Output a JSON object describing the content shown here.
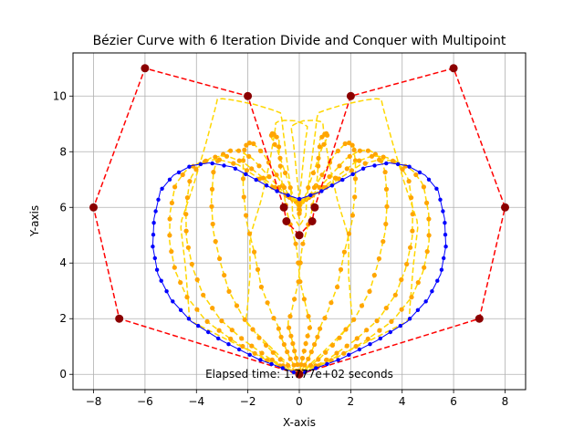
{
  "chart_data": {
    "type": "line",
    "title": "Bézier Curve with 6 Iteration Divide and Conquer with Multipoint",
    "xlabel": "X-axis",
    "ylabel": "Y-axis",
    "xlim": [
      -8.8,
      8.8
    ],
    "ylim": [
      -0.55,
      11.55
    ],
    "xticks": [
      -8,
      -6,
      -4,
      -2,
      0,
      2,
      4,
      6,
      8
    ],
    "yticks": [
      0,
      2,
      4,
      6,
      8,
      10
    ],
    "grid": true,
    "annotation": {
      "text": "Elapsed time: 1.777e+02 seconds",
      "x": 0,
      "y": 0
    },
    "control_polygon": {
      "color": "#ff0000",
      "style": "dashed",
      "marker_color": "#8b0000",
      "points": [
        [
          0,
          5
        ],
        [
          -0.5,
          5.5
        ],
        [
          -0.6,
          6
        ],
        [
          -2,
          10
        ],
        [
          -6,
          11
        ],
        [
          -8,
          6
        ],
        [
          -7,
          2
        ],
        [
          0,
          0
        ],
        [
          7,
          2
        ],
        [
          8,
          6
        ],
        [
          6,
          11
        ],
        [
          2,
          10
        ],
        [
          0.6,
          6
        ],
        [
          0.5,
          5.5
        ],
        [
          0,
          5
        ]
      ]
    },
    "intermediate_color": "#ffd700",
    "intermediate_marker_color": "#ffa500",
    "curve": {
      "color": "#0000ff",
      "points": [
        [
          0,
          6.3
        ],
        [
          0.8,
          6.55
        ],
        [
          1.8,
          7.05
        ],
        [
          2.6,
          7.45
        ],
        [
          3.5,
          7.6
        ],
        [
          4.2,
          7.5
        ],
        [
          4.9,
          7.15
        ],
        [
          5.4,
          6.6
        ],
        [
          5.65,
          5.6
        ],
        [
          5.7,
          4.6
        ],
        [
          5.5,
          3.6
        ],
        [
          5.0,
          2.7
        ],
        [
          4.2,
          1.9
        ],
        [
          3.0,
          1.2
        ],
        [
          1.6,
          0.55
        ],
        [
          0,
          0
        ],
        [
          -1.6,
          0.55
        ],
        [
          -3.0,
          1.2
        ],
        [
          -4.2,
          1.9
        ],
        [
          -5.0,
          2.7
        ],
        [
          -5.5,
          3.6
        ],
        [
          -5.7,
          4.6
        ],
        [
          -5.65,
          5.6
        ],
        [
          -5.4,
          6.6
        ],
        [
          -4.9,
          7.15
        ],
        [
          -4.2,
          7.5
        ],
        [
          -3.5,
          7.6
        ],
        [
          -2.6,
          7.45
        ],
        [
          -1.8,
          7.05
        ],
        [
          -0.8,
          6.55
        ],
        [
          0,
          6.3
        ]
      ]
    }
  }
}
